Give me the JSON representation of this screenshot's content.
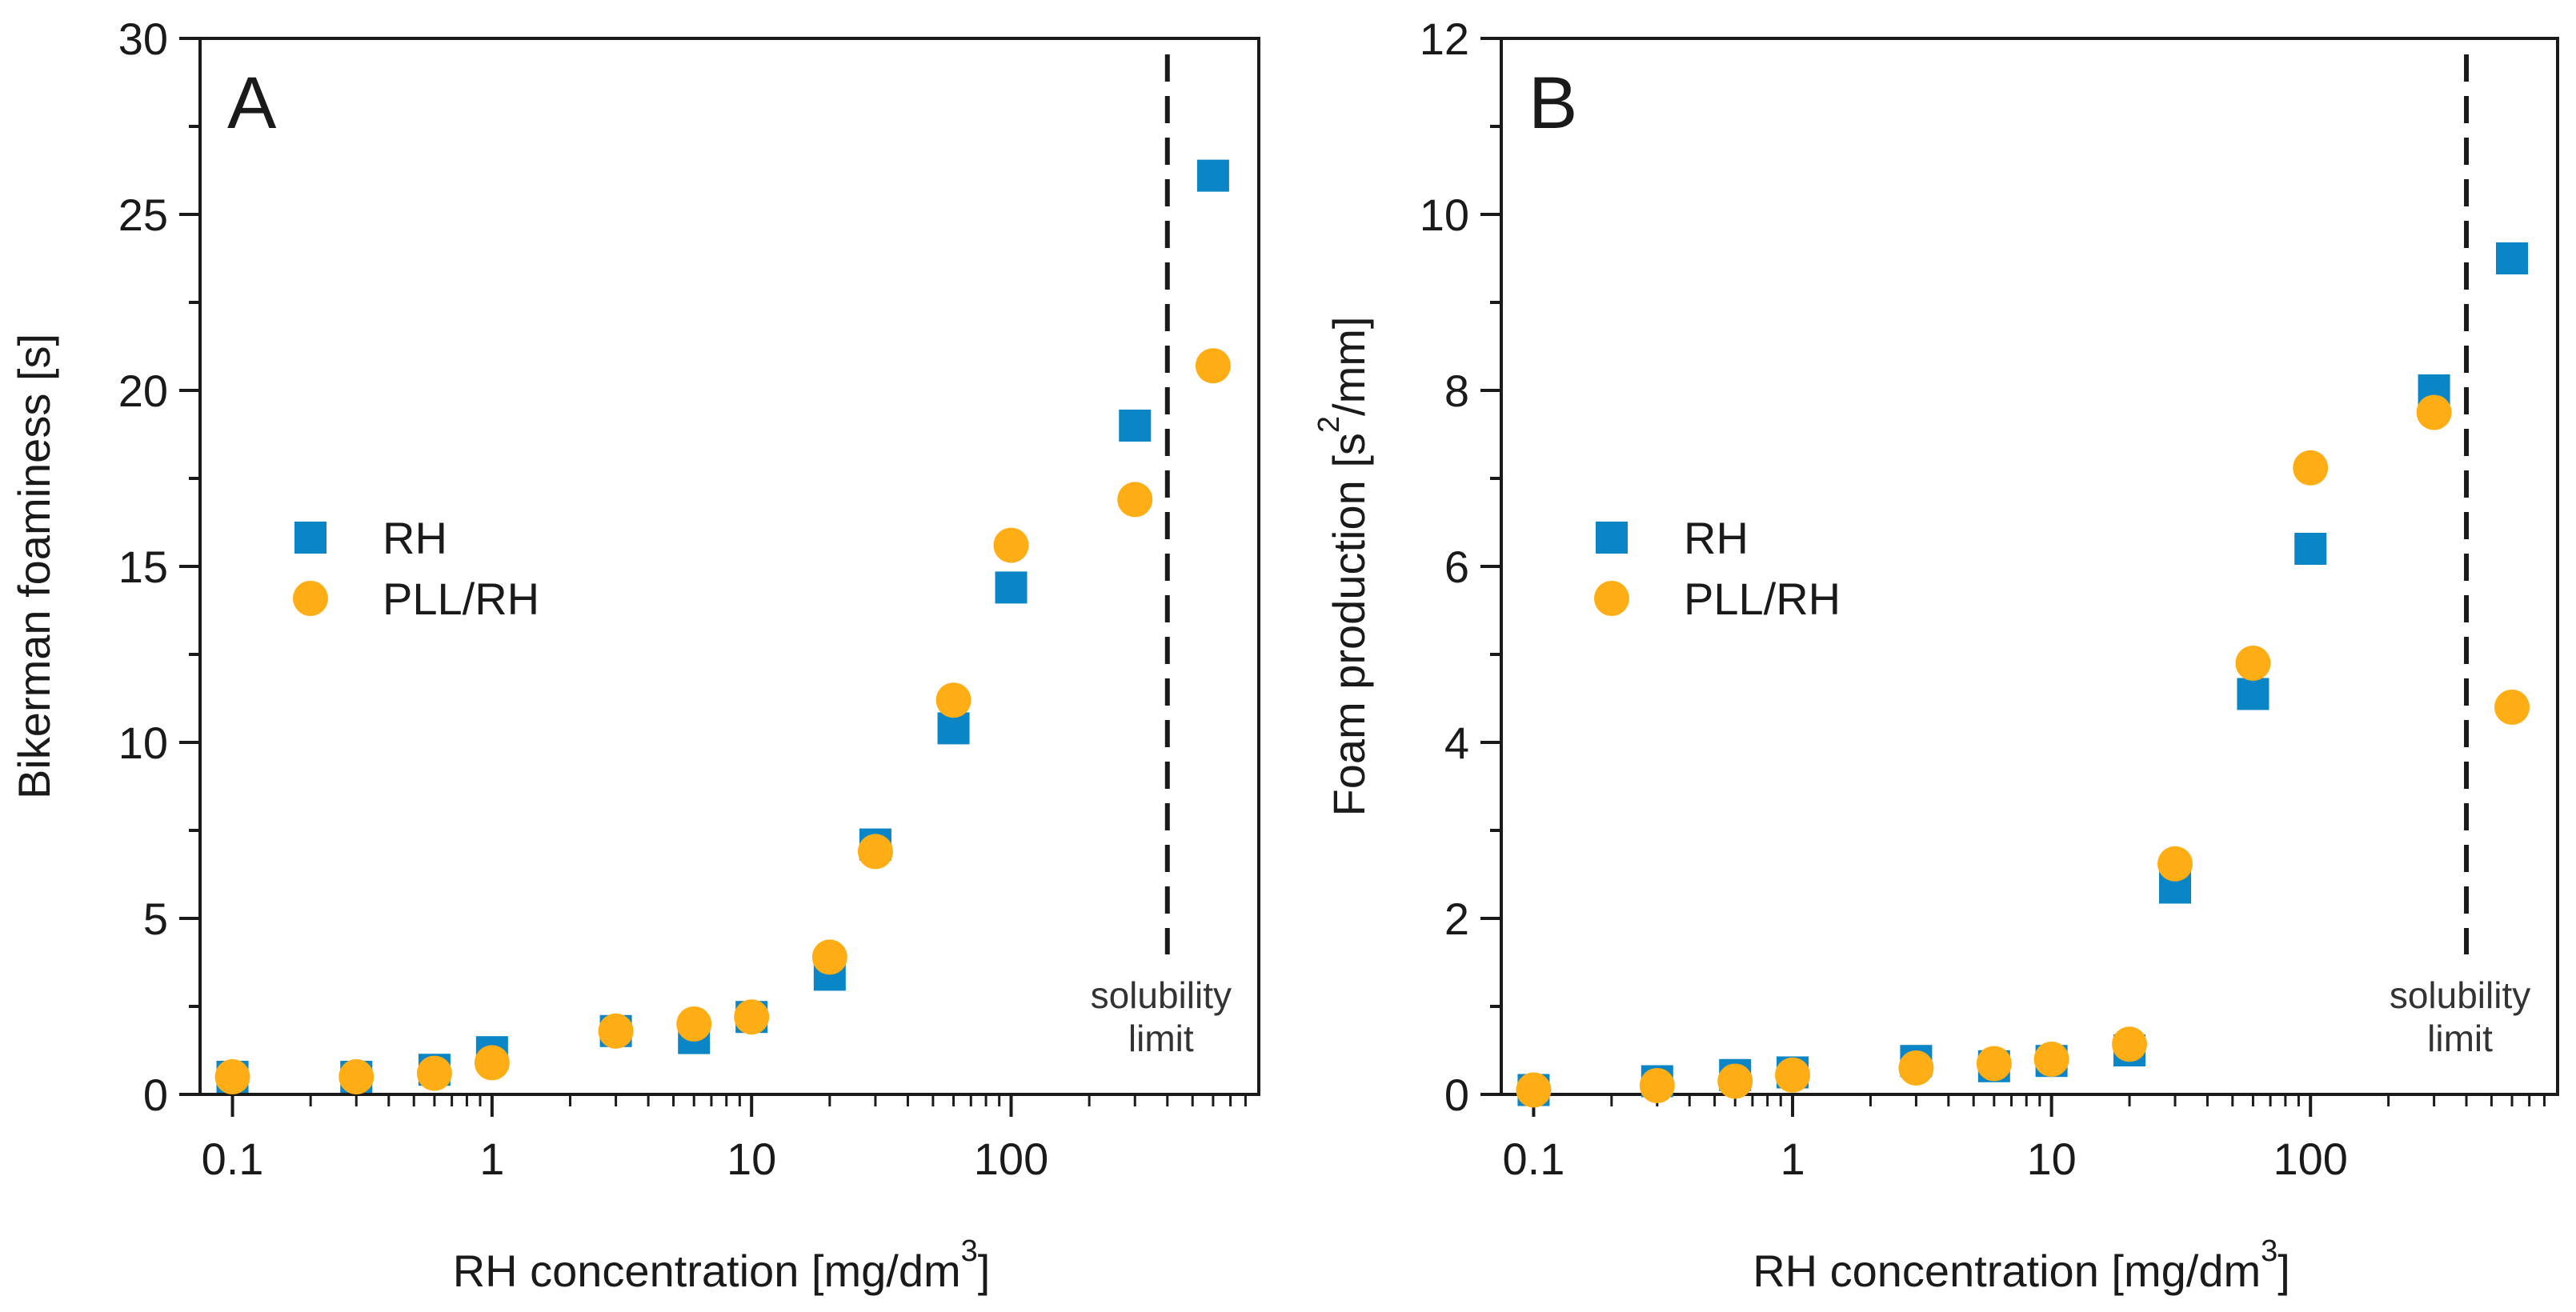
{
  "colors": {
    "rh": "#0a85c6",
    "pll": "#ffad14",
    "axis": "#1a1a1a",
    "dashed": "#1a1a1a"
  },
  "chart_data": [
    {
      "type": "scatter",
      "panel": "A",
      "xlabel": "RH concentration [mg/dm",
      "xlabel_sup": "3",
      "xlabel_end": "]",
      "ylabel": "Bikerman foaminess [s]",
      "xscale": "log",
      "xlim": [
        0.075,
        900
      ],
      "ylim": [
        0,
        30
      ],
      "x_ticks": [
        0.1,
        1,
        10,
        100
      ],
      "x_tick_labels": [
        "0.1",
        "1",
        "10",
        "100"
      ],
      "y_ticks": [
        0,
        5,
        10,
        15,
        20,
        25,
        30
      ],
      "y_tick_labels": [
        "0",
        "5",
        "10",
        "15",
        "20",
        "25",
        "30"
      ],
      "legend_position": "center-left",
      "solubility_limit_x": 400,
      "annotation": [
        "solubility",
        "limit"
      ],
      "series": [
        {
          "name": "RH",
          "marker": "square",
          "x": [
            0.1,
            0.3,
            0.6,
            1,
            3,
            6,
            10,
            20,
            30,
            60,
            100,
            300,
            600
          ],
          "y": [
            0.5,
            0.5,
            0.7,
            1.2,
            1.8,
            1.6,
            2.2,
            3.4,
            7.1,
            10.4,
            14.4,
            19.0,
            26.1
          ]
        },
        {
          "name": "PLL/RH",
          "marker": "circle",
          "x": [
            0.1,
            0.3,
            0.6,
            1,
            3,
            6,
            10,
            20,
            30,
            60,
            100,
            300,
            600
          ],
          "y": [
            0.5,
            0.5,
            0.6,
            0.9,
            1.8,
            2.0,
            2.2,
            3.9,
            6.9,
            11.2,
            15.6,
            16.9,
            20.7
          ]
        }
      ]
    },
    {
      "type": "scatter",
      "panel": "B",
      "xlabel": "RH concentration [mg/dm",
      "xlabel_sup": "3",
      "xlabel_end": "]",
      "ylabel": "Foam production [s",
      "ylabel_sup": "2",
      "ylabel_end": "/mm]",
      "xscale": "log",
      "xlim": [
        0.075,
        900
      ],
      "ylim": [
        0,
        12
      ],
      "x_ticks": [
        0.1,
        1,
        10,
        100
      ],
      "x_tick_labels": [
        "0.1",
        "1",
        "10",
        "100"
      ],
      "y_ticks": [
        0,
        2,
        4,
        6,
        8,
        10,
        12
      ],
      "y_tick_labels": [
        "0",
        "2",
        "4",
        "6",
        "8",
        "10",
        "12"
      ],
      "legend_position": "center-left",
      "solubility_limit_x": 400,
      "annotation": [
        "solubility",
        "limit"
      ],
      "series": [
        {
          "name": "RH",
          "marker": "square",
          "x": [
            0.1,
            0.3,
            0.6,
            1,
            3,
            6,
            10,
            20,
            30,
            60,
            100,
            300,
            600
          ],
          "y": [
            0.05,
            0.15,
            0.22,
            0.25,
            0.38,
            0.32,
            0.38,
            0.5,
            2.35,
            4.55,
            6.2,
            8.0,
            9.5
          ]
        },
        {
          "name": "PLL/RH",
          "marker": "circle",
          "x": [
            0.1,
            0.3,
            0.6,
            1,
            3,
            6,
            10,
            20,
            30,
            60,
            100,
            300,
            600
          ],
          "y": [
            0.05,
            0.1,
            0.15,
            0.22,
            0.3,
            0.35,
            0.4,
            0.57,
            2.62,
            4.9,
            7.12,
            7.75,
            4.4
          ]
        }
      ]
    }
  ]
}
